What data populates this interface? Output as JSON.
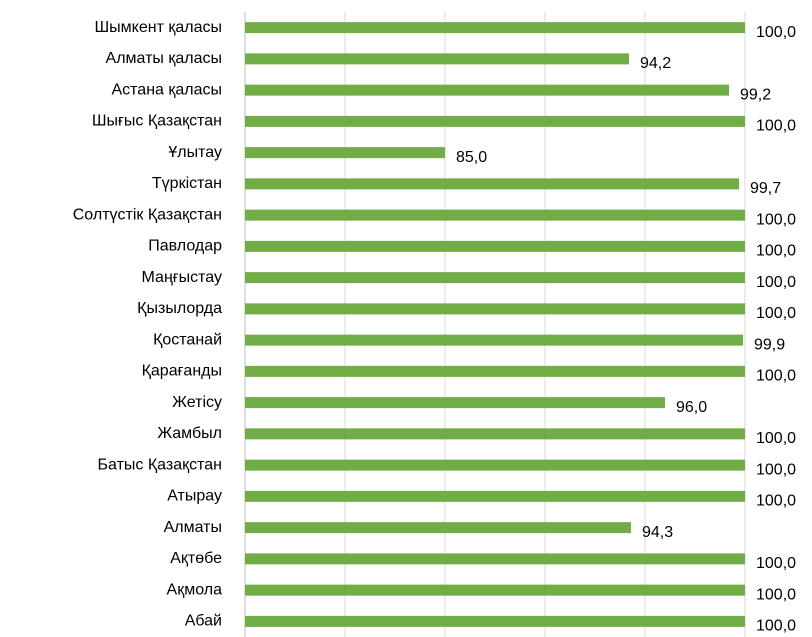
{
  "chart_data": {
    "type": "barh",
    "categories": [
      "Шымкент қаласы",
      "Алматы қаласы",
      "Астана қаласы",
      "Шығыс Қазақстан",
      "Ұлытау",
      "Түркістан",
      "Солтүстік Қазақстан",
      "Павлодар",
      "Маңғыстау",
      "Қызылорда",
      "Қостанай",
      "Қарағанды",
      "Жетісу",
      "Жамбыл",
      "Батыс Қазақстан",
      "Атырау",
      "Алматы",
      "Ақтөбе",
      "Ақмола",
      "Абай"
    ],
    "values": [
      100,
      94.2,
      99.2,
      100,
      85,
      99.7,
      100,
      100,
      100,
      100,
      99.9,
      100,
      96,
      100,
      100,
      100,
      94.3,
      100,
      100,
      100
    ],
    "value_labels": [
      "100,0",
      "94,2",
      "99,2",
      "100,0",
      "85,0",
      "99,7",
      "100,0",
      "100,0",
      "100,0",
      "100,0",
      "99,9",
      "100,0",
      "96,0",
      "100,0",
      "100,0",
      "100,0",
      "94,3",
      "100,0",
      "100,0",
      "100,0"
    ],
    "color": "#70ad47",
    "xlim": [
      75,
      100
    ],
    "xticks": [
      75,
      80,
      85,
      90,
      95,
      100
    ],
    "grid": true
  }
}
